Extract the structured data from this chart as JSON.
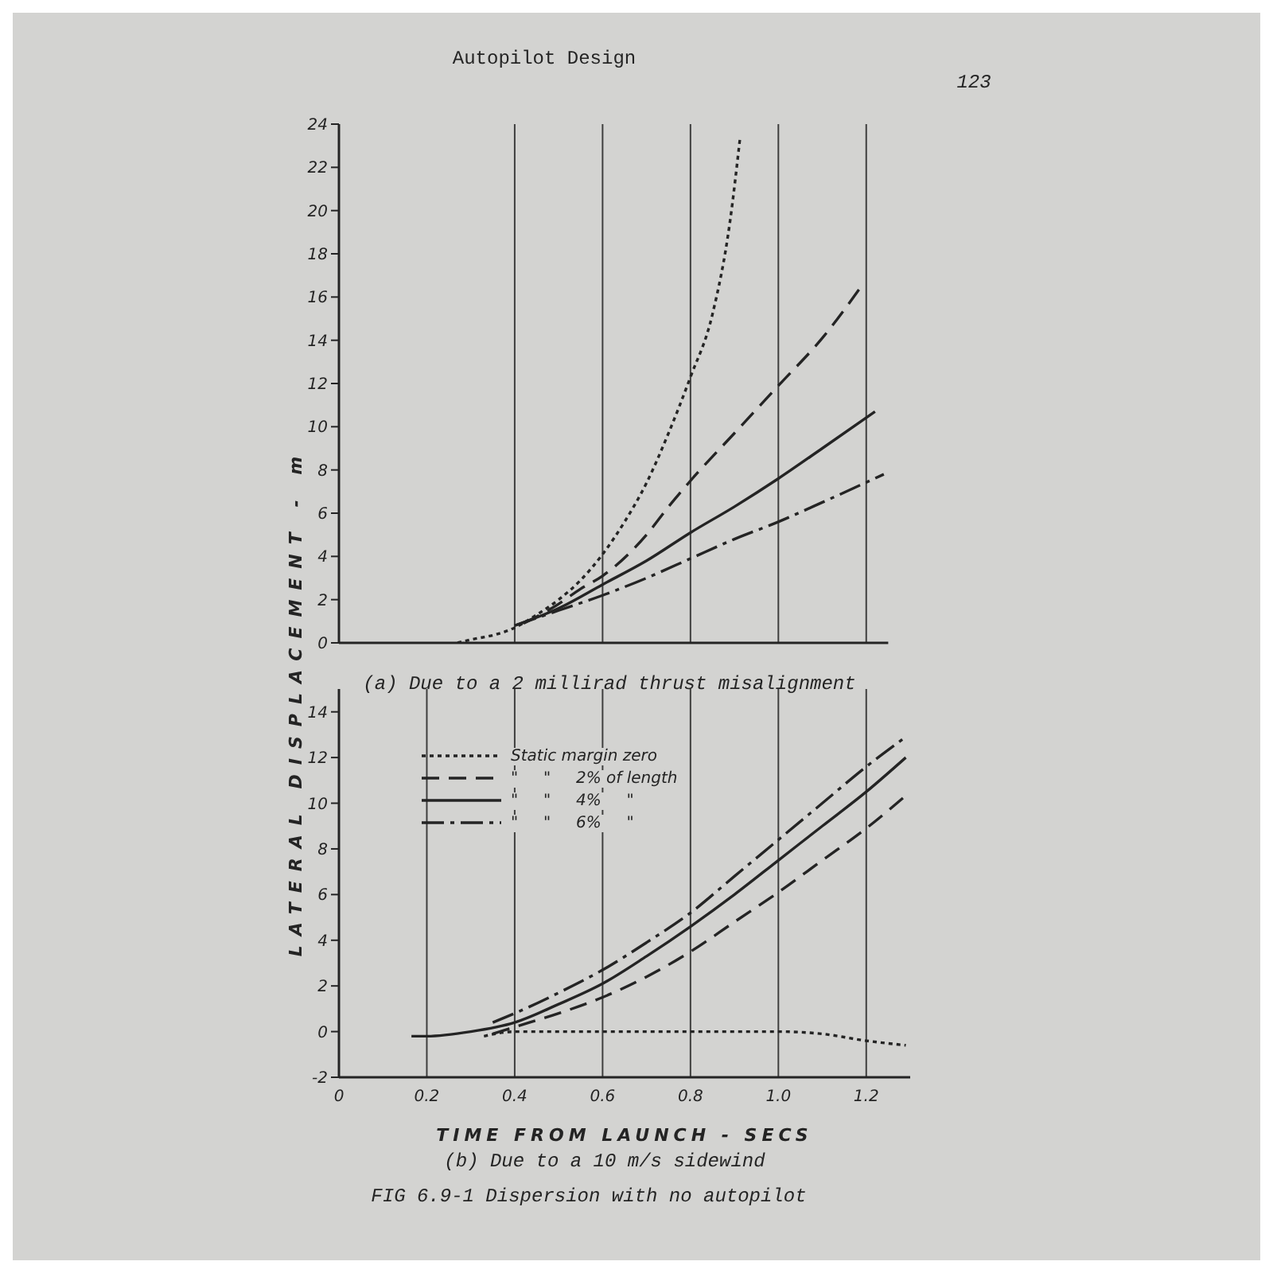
{
  "chart_data": [
    {
      "type": "line",
      "title": "(a) Due to a 2 millirad thrust misalignment",
      "ylabel": "LATERAL DISPLACEMENT - m",
      "annotations": [
        "Autopilot Design",
        "123"
      ],
      "xlim": [
        0,
        1.25
      ],
      "xticks": [
        0.4,
        0.6,
        0.8,
        1.0,
        1.2
      ],
      "ylim": [
        0,
        24
      ],
      "yticks": [
        0,
        2,
        4,
        6,
        8,
        10,
        12,
        14,
        16,
        18,
        20,
        22,
        24
      ],
      "grid": "x",
      "tick_labels": "y",
      "series": [
        {
          "color": "#242424",
          "line_style": "dotted",
          "x": [
            0.27,
            0.3,
            0.35,
            0.4,
            0.45,
            0.5,
            0.55,
            0.6,
            0.65,
            0.7,
            0.75,
            0.8,
            0.85,
            0.89,
            0.913
          ],
          "values": [
            0,
            0.15,
            0.35,
            0.7,
            1.3,
            2.0,
            2.9,
            4.1,
            5.6,
            7.4,
            9.7,
            12.3,
            15.2,
            19.5,
            23.4
          ]
        },
        {
          "color": "#242424",
          "line_style": "dashed",
          "x": [
            0.42,
            0.5,
            0.55,
            0.6,
            0.7,
            0.75,
            0.8,
            0.9,
            1.0,
            1.1,
            1.196
          ],
          "values": [
            0.9,
            1.8,
            2.5,
            3.1,
            5.0,
            6.3,
            7.5,
            9.7,
            11.9,
            14.1,
            16.7
          ]
        },
        {
          "color": "#242424",
          "line_style": "solid",
          "x": [
            0.4,
            0.5,
            0.6,
            0.7,
            0.8,
            0.9,
            1.0,
            1.1,
            1.22
          ],
          "values": [
            0.8,
            1.6,
            2.7,
            3.8,
            5.1,
            6.3,
            7.6,
            9.0,
            10.7
          ]
        },
        {
          "color": "#242424",
          "line_style": "dashdot",
          "x": [
            0.4,
            0.5,
            0.6,
            0.7,
            0.8,
            0.9,
            1.0,
            1.1,
            1.24
          ],
          "values": [
            0.8,
            1.5,
            2.2,
            3.0,
            3.9,
            4.8,
            5.6,
            6.5,
            7.8
          ]
        }
      ]
    },
    {
      "type": "line",
      "title": "(b) Due to a 10 m/s sidewind",
      "xlabel": "TIME FROM LAUNCH - SECS",
      "annotations": [
        "FIG 6.9-1 Dispersion with no autopilot"
      ],
      "xlim": [
        0,
        1.3
      ],
      "xticks": [
        0,
        0.2,
        0.4,
        0.6,
        0.8,
        {
          "value": 1,
          "label": "1.0"
        },
        1.2
      ],
      "ylim": [
        -2,
        15
      ],
      "yticks": [
        -2,
        0,
        2,
        4,
        6,
        8,
        10,
        12,
        14
      ],
      "grid": "x",
      "legend": "top left",
      "series": [
        {
          "name": "Static margin zero",
          "color": "#242424",
          "line_style": "dotted",
          "x": [
            0.33,
            0.4,
            0.5,
            0.6,
            0.7,
            0.8,
            0.9,
            1.0,
            1.1,
            1.2,
            1.29
          ],
          "values": [
            -0.2,
            0,
            0,
            0,
            0,
            0,
            0,
            0,
            -0.1,
            -0.4,
            -0.6
          ]
        },
        {
          "name": "\"     \"     2% of length",
          "color": "#242424",
          "line_style": "dashed",
          "x": [
            0.35,
            0.4,
            0.5,
            0.6,
            0.7,
            0.8,
            0.9,
            1.0,
            1.1,
            1.2,
            1.3
          ],
          "values": [
            -0.1,
            0.2,
            0.8,
            1.5,
            2.4,
            3.5,
            4.8,
            6.1,
            7.5,
            8.9,
            10.5
          ]
        },
        {
          "name": "\"     \"     4%     \"",
          "color": "#242424",
          "line_style": "solid",
          "x": [
            0.165,
            0.2,
            0.3,
            0.4,
            0.5,
            0.6,
            0.7,
            0.8,
            0.9,
            1.0,
            1.1,
            1.2,
            1.29
          ],
          "values": [
            -0.2,
            -0.2,
            0,
            0.4,
            1.2,
            2.1,
            3.3,
            4.6,
            6.0,
            7.5,
            9.0,
            10.5,
            12.0
          ]
        },
        {
          "name": "\"     \"     6%     \"",
          "color": "#242424",
          "line_style": "dashdot",
          "x": [
            0.35,
            0.4,
            0.5,
            0.6,
            0.7,
            0.8,
            0.9,
            1.0,
            1.1,
            1.2,
            1.29
          ],
          "values": [
            0.4,
            0.8,
            1.7,
            2.7,
            3.9,
            5.2,
            6.8,
            8.4,
            10.0,
            11.6,
            12.9
          ]
        }
      ]
    }
  ]
}
